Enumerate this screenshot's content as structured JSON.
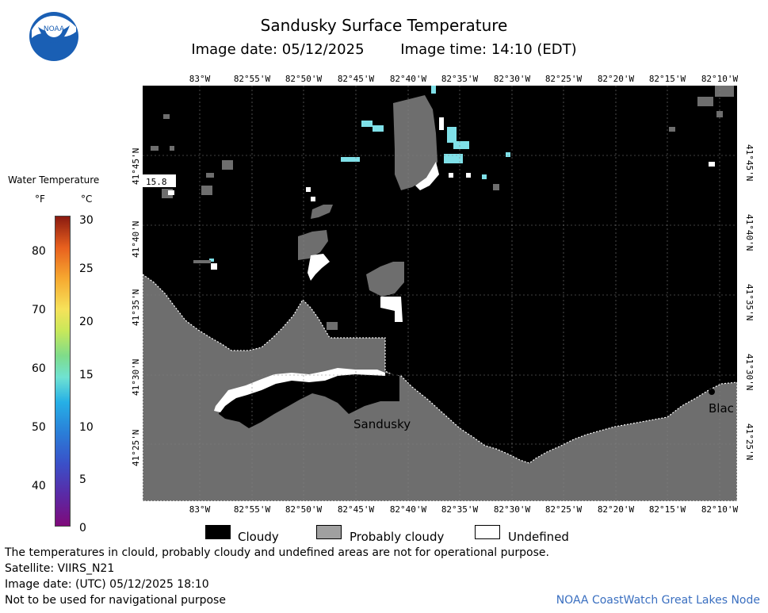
{
  "header": {
    "title": "Sandusky Surface Temperature",
    "image_date": "Image date: 05/12/2025",
    "image_time": "Image time: 14:10 (EDT)"
  },
  "logo": {
    "text": "NOAA"
  },
  "map": {
    "lon_labels": [
      "83°W",
      "82°55'W",
      "82°50'W",
      "82°45'W",
      "82°40'W",
      "82°35'W",
      "82°30'W",
      "82°25'W",
      "82°20'W",
      "82°15'W",
      "82°10'W"
    ],
    "lat_labels": [
      "41°45'N",
      "41°40'N",
      "41°35'N",
      "41°30'N",
      "41°25'N"
    ],
    "place_labels": {
      "sandusky": "Sandusky",
      "bla": "Blac"
    },
    "temp_label": "15.8",
    "colors": {
      "cloudy": "#000000",
      "probably_cloudy": "#6e6e6e",
      "undefined": "#ffffff",
      "water_cool": "#7fe0e8"
    }
  },
  "colorbar": {
    "title": "Water Temperature",
    "unit_f": "°F",
    "unit_c": "°C",
    "f_ticks": [
      "80",
      "70",
      "60",
      "50",
      "40"
    ],
    "c_ticks": [
      "30",
      "25",
      "20",
      "15",
      "10",
      "5",
      "0"
    ]
  },
  "legend": {
    "cloudy": "Cloudy",
    "probably_cloudy": "Probably cloudy",
    "undefined": "Undefined"
  },
  "footer": {
    "line1": "The temperatures in clould, probably cloudy and undefined areas are not for operational purpose.",
    "line2": "Satellite: VIIRS_N21",
    "line3": "Image date: (UTC) 05/12/2025  18:10",
    "line4": "Not to be used for navigational purpose",
    "credit": "NOAA CoastWatch Great Lakes Node"
  }
}
